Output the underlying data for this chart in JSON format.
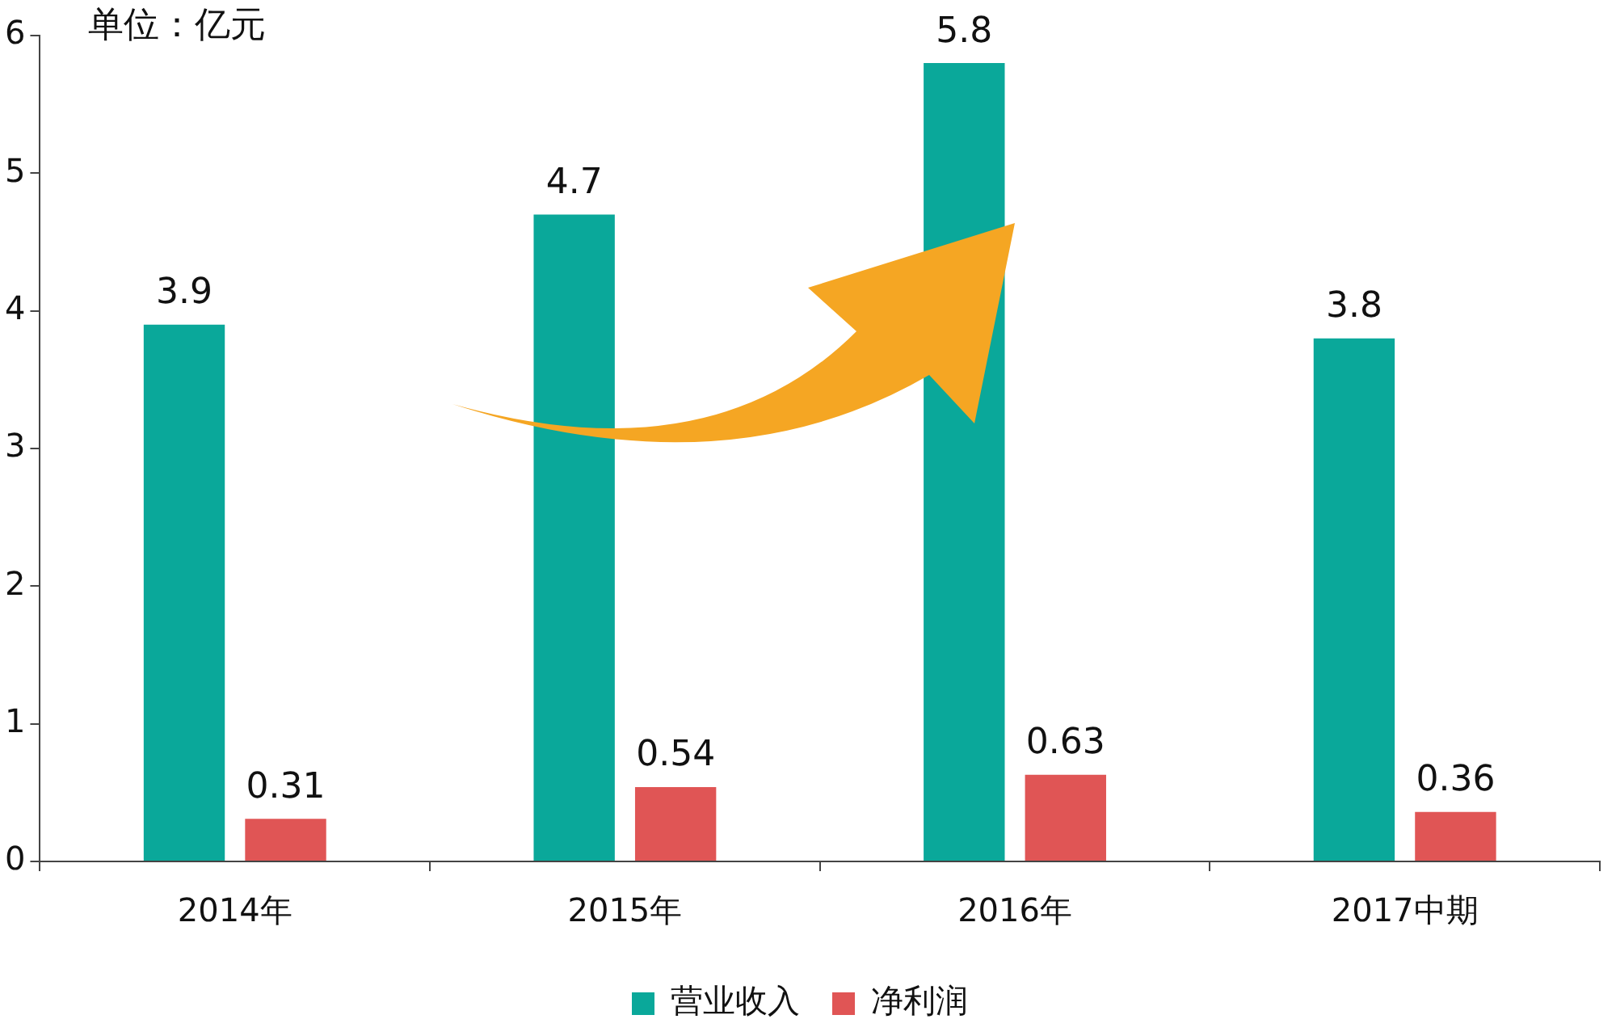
{
  "chart_data": {
    "type": "bar",
    "categories": [
      "2014年",
      "2015年",
      "2016年",
      "2017中期"
    ],
    "series": [
      {
        "name": "营业收入",
        "color": "#0aa89a",
        "values": [
          3.9,
          4.7,
          5.8,
          3.8
        ]
      },
      {
        "name": "净利润",
        "color": "#e05555",
        "values": [
          0.31,
          0.54,
          0.63,
          0.36
        ]
      }
    ],
    "ylim": [
      0,
      6
    ],
    "yticks": [
      0,
      1,
      2,
      3,
      4,
      5,
      6
    ],
    "grid": false,
    "legend": "bottom",
    "data_labels": true,
    "annotations": [
      "单位：亿元"
    ]
  }
}
